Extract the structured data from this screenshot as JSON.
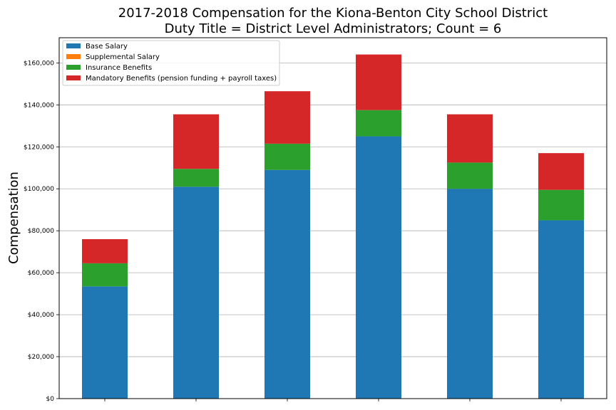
{
  "chart_data": {
    "type": "bar",
    "stacked": true,
    "title": [
      "2017-2018 Compensation for the Kiona-Benton City School District",
      "Duty Title = District Level Administrators; Count = 6"
    ],
    "xlabel": "",
    "ylabel": "Compensation",
    "ylim": [
      0,
      172000
    ],
    "yticks": [
      "$0",
      "$20,000",
      "$40,000",
      "$60,000",
      "$80,000",
      "$100,000",
      "$120,000",
      "$140,000",
      "$160,000"
    ],
    "ytick_values": [
      0,
      20000,
      40000,
      60000,
      80000,
      100000,
      120000,
      140000,
      160000
    ],
    "categories": [
      "",
      "",
      "",
      "",
      "",
      ""
    ],
    "grid": "horizontal",
    "legend_position": "top-left",
    "series": [
      {
        "name": "Base Salary",
        "color": "#1f77b4",
        "values": [
          53500,
          101000,
          109000,
          125000,
          100000,
          85000
        ]
      },
      {
        "name": "Supplemental Salary",
        "color": "#ff7f0e",
        "values": [
          0,
          0,
          0,
          0,
          0,
          0
        ]
      },
      {
        "name": "Insurance Benefits",
        "color": "#2ca02c",
        "values": [
          11000,
          8500,
          12500,
          12500,
          12500,
          14500
        ]
      },
      {
        "name": "Mandatory Benefits (pension funding + payroll taxes)",
        "color": "#d62728",
        "values": [
          11500,
          26000,
          25000,
          26500,
          23000,
          17500
        ]
      }
    ]
  }
}
